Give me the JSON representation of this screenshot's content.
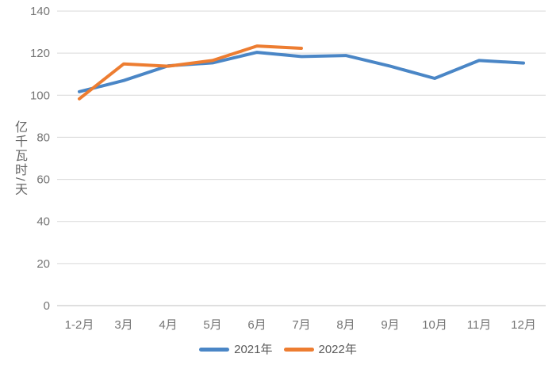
{
  "chart_data": {
    "type": "line",
    "title": "",
    "xlabel": "",
    "ylabel": "亿千瓦时/天",
    "categories": [
      "1-2月",
      "3月",
      "4月",
      "5月",
      "6月",
      "7月",
      "8月",
      "9月",
      "10月",
      "11月",
      "12月"
    ],
    "series": [
      {
        "name": "2021年",
        "color": "#4A86C6",
        "values": [
          101.7,
          107.0,
          114.0,
          115.4,
          120.4,
          118.4,
          118.9,
          113.8,
          108.0,
          116.5,
          115.3
        ]
      },
      {
        "name": "2022年",
        "color": "#ED7D31",
        "values": [
          98.3,
          114.9,
          113.8,
          116.5,
          123.4,
          122.3,
          null,
          null,
          null,
          null,
          null
        ]
      }
    ],
    "ylim": [
      0,
      140
    ],
    "ytick_step": 20,
    "yticks": [
      0,
      20,
      40,
      60,
      80,
      100,
      120,
      140
    ],
    "grid": "horizontal",
    "legend_position": "bottom"
  },
  "colors": {
    "background": "#FFFFFF",
    "gridline": "#D9D9D9",
    "axis_line": "#BFBFBF",
    "tick_text": "#757575",
    "legend_text": "#595959"
  }
}
